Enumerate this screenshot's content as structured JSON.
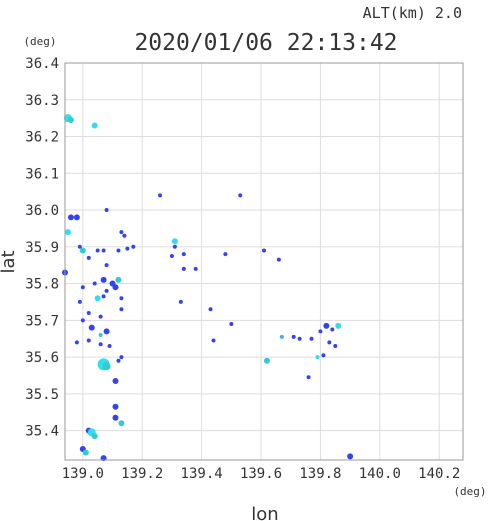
{
  "header": {
    "altitude_label": "ALT(km) 2.0",
    "timestamp": "2020/01/06 22:13:42"
  },
  "colors": {
    "frame": "#999999",
    "grid": "#dddddd",
    "blue": "#3344ee",
    "cyan": "#33ddee",
    "teal": "#33cccc",
    "lightblue": "#44aaff"
  },
  "chart_data": {
    "type": "scatter",
    "title": "2020/01/06 22:13:42",
    "subtitle": "ALT(km) 2.0",
    "xlabel": "lon",
    "ylabel": "lat",
    "x_unit": "(deg)",
    "y_unit": "(deg)",
    "xlim": [
      138.94,
      140.28
    ],
    "ylim": [
      35.32,
      36.4
    ],
    "xticks": [
      139.0,
      139.2,
      139.4,
      139.6,
      139.8,
      140.0,
      140.2
    ],
    "xtick_labels": [
      "139.0",
      "139.2",
      "139.4",
      "139.6",
      "139.8",
      "140.0",
      "140.2"
    ],
    "yticks": [
      35.4,
      35.5,
      35.6,
      35.7,
      35.8,
      35.9,
      36.0,
      36.1,
      36.2,
      36.3,
      36.4
    ],
    "ytick_labels": [
      "35.4",
      "35.5",
      "35.6",
      "35.7",
      "35.8",
      "35.9",
      "36.0",
      "36.1",
      "36.2",
      "36.3",
      "36.4"
    ],
    "grid": true,
    "points": [
      {
        "x": 138.95,
        "y": 36.25,
        "s": 4,
        "c": "cyan"
      },
      {
        "x": 138.96,
        "y": 36.245,
        "s": 3,
        "c": "teal"
      },
      {
        "x": 139.04,
        "y": 36.23,
        "s": 3,
        "c": "cyan"
      },
      {
        "x": 138.96,
        "y": 35.98,
        "s": 3,
        "c": "blue"
      },
      {
        "x": 138.98,
        "y": 35.98,
        "s": 3,
        "c": "blue"
      },
      {
        "x": 139.08,
        "y": 36.0,
        "s": 2,
        "c": "blue"
      },
      {
        "x": 138.95,
        "y": 35.94,
        "s": 3,
        "c": "cyan"
      },
      {
        "x": 139.13,
        "y": 35.94,
        "s": 2,
        "c": "blue"
      },
      {
        "x": 139.14,
        "y": 35.93,
        "s": 2,
        "c": "blue"
      },
      {
        "x": 138.99,
        "y": 35.9,
        "s": 2,
        "c": "blue"
      },
      {
        "x": 139.0,
        "y": 35.89,
        "s": 3,
        "c": "teal"
      },
      {
        "x": 139.05,
        "y": 35.89,
        "s": 2,
        "c": "blue"
      },
      {
        "x": 139.07,
        "y": 35.89,
        "s": 2,
        "c": "blue"
      },
      {
        "x": 139.12,
        "y": 35.89,
        "s": 2,
        "c": "blue"
      },
      {
        "x": 139.15,
        "y": 35.895,
        "s": 2,
        "c": "blue"
      },
      {
        "x": 139.17,
        "y": 35.9,
        "s": 2,
        "c": "blue"
      },
      {
        "x": 139.02,
        "y": 35.87,
        "s": 2,
        "c": "blue"
      },
      {
        "x": 139.08,
        "y": 35.85,
        "s": 2,
        "c": "blue"
      },
      {
        "x": 138.94,
        "y": 35.83,
        "s": 3,
        "c": "blue"
      },
      {
        "x": 139.07,
        "y": 35.81,
        "s": 3,
        "c": "blue"
      },
      {
        "x": 139.1,
        "y": 35.8,
        "s": 3,
        "c": "blue"
      },
      {
        "x": 139.12,
        "y": 35.81,
        "s": 3,
        "c": "teal"
      },
      {
        "x": 139.11,
        "y": 35.79,
        "s": 3,
        "c": "blue"
      },
      {
        "x": 139.08,
        "y": 35.78,
        "s": 2,
        "c": "blue"
      },
      {
        "x": 139.04,
        "y": 35.8,
        "s": 2,
        "c": "blue"
      },
      {
        "x": 139.0,
        "y": 35.79,
        "s": 2,
        "c": "blue"
      },
      {
        "x": 138.99,
        "y": 35.75,
        "s": 2,
        "c": "blue"
      },
      {
        "x": 139.05,
        "y": 35.76,
        "s": 3,
        "c": "cyan"
      },
      {
        "x": 139.07,
        "y": 35.765,
        "s": 2,
        "c": "blue"
      },
      {
        "x": 139.13,
        "y": 35.76,
        "s": 2,
        "c": "blue"
      },
      {
        "x": 139.13,
        "y": 35.73,
        "s": 2,
        "c": "blue"
      },
      {
        "x": 139.02,
        "y": 35.72,
        "s": 2,
        "c": "blue"
      },
      {
        "x": 139.0,
        "y": 35.7,
        "s": 2,
        "c": "blue"
      },
      {
        "x": 139.06,
        "y": 35.71,
        "s": 2,
        "c": "blue"
      },
      {
        "x": 139.03,
        "y": 35.68,
        "s": 3,
        "c": "blue"
      },
      {
        "x": 139.06,
        "y": 35.66,
        "s": 2,
        "c": "teal"
      },
      {
        "x": 139.08,
        "y": 35.67,
        "s": 3,
        "c": "blue"
      },
      {
        "x": 139.02,
        "y": 35.645,
        "s": 2,
        "c": "blue"
      },
      {
        "x": 138.98,
        "y": 35.64,
        "s": 2,
        "c": "blue"
      },
      {
        "x": 139.06,
        "y": 35.635,
        "s": 2,
        "c": "blue"
      },
      {
        "x": 139.09,
        "y": 35.63,
        "s": 2,
        "c": "blue"
      },
      {
        "x": 139.07,
        "y": 35.58,
        "s": 6,
        "c": "cyan"
      },
      {
        "x": 139.08,
        "y": 35.575,
        "s": 4,
        "c": "teal"
      },
      {
        "x": 139.12,
        "y": 35.59,
        "s": 2,
        "c": "blue"
      },
      {
        "x": 139.13,
        "y": 35.6,
        "s": 2,
        "c": "blue"
      },
      {
        "x": 139.11,
        "y": 35.535,
        "s": 3,
        "c": "blue"
      },
      {
        "x": 139.11,
        "y": 35.465,
        "s": 3,
        "c": "blue"
      },
      {
        "x": 139.11,
        "y": 35.435,
        "s": 3,
        "c": "blue"
      },
      {
        "x": 139.13,
        "y": 35.42,
        "s": 3,
        "c": "teal"
      },
      {
        "x": 139.02,
        "y": 35.4,
        "s": 3,
        "c": "blue"
      },
      {
        "x": 139.03,
        "y": 35.395,
        "s": 4,
        "c": "cyan"
      },
      {
        "x": 139.04,
        "y": 35.385,
        "s": 3,
        "c": "teal"
      },
      {
        "x": 139.0,
        "y": 35.35,
        "s": 3,
        "c": "blue"
      },
      {
        "x": 139.01,
        "y": 35.34,
        "s": 3,
        "c": "teal"
      },
      {
        "x": 139.07,
        "y": 35.325,
        "s": 3,
        "c": "blue"
      },
      {
        "x": 139.26,
        "y": 36.04,
        "s": 2,
        "c": "blue"
      },
      {
        "x": 139.53,
        "y": 36.04,
        "s": 2,
        "c": "blue"
      },
      {
        "x": 139.31,
        "y": 35.915,
        "s": 3,
        "c": "cyan"
      },
      {
        "x": 139.31,
        "y": 35.9,
        "s": 2,
        "c": "blue"
      },
      {
        "x": 139.34,
        "y": 35.88,
        "s": 2,
        "c": "blue"
      },
      {
        "x": 139.3,
        "y": 35.875,
        "s": 2,
        "c": "blue"
      },
      {
        "x": 139.48,
        "y": 35.88,
        "s": 2,
        "c": "blue"
      },
      {
        "x": 139.61,
        "y": 35.89,
        "s": 2,
        "c": "blue"
      },
      {
        "x": 139.66,
        "y": 35.865,
        "s": 2,
        "c": "blue"
      },
      {
        "x": 139.34,
        "y": 35.84,
        "s": 2,
        "c": "blue"
      },
      {
        "x": 139.38,
        "y": 35.84,
        "s": 2,
        "c": "blue"
      },
      {
        "x": 139.33,
        "y": 35.75,
        "s": 2,
        "c": "blue"
      },
      {
        "x": 139.43,
        "y": 35.73,
        "s": 2,
        "c": "blue"
      },
      {
        "x": 139.5,
        "y": 35.69,
        "s": 2,
        "c": "blue"
      },
      {
        "x": 139.44,
        "y": 35.645,
        "s": 2,
        "c": "blue"
      },
      {
        "x": 139.62,
        "y": 35.59,
        "s": 3,
        "c": "teal"
      },
      {
        "x": 139.67,
        "y": 35.655,
        "s": 2,
        "c": "lightblue"
      },
      {
        "x": 139.71,
        "y": 35.655,
        "s": 2,
        "c": "blue"
      },
      {
        "x": 139.73,
        "y": 35.65,
        "s": 2,
        "c": "blue"
      },
      {
        "x": 139.77,
        "y": 35.65,
        "s": 2,
        "c": "blue"
      },
      {
        "x": 139.82,
        "y": 35.685,
        "s": 3,
        "c": "blue"
      },
      {
        "x": 139.84,
        "y": 35.675,
        "s": 2,
        "c": "blue"
      },
      {
        "x": 139.86,
        "y": 35.685,
        "s": 3,
        "c": "cyan"
      },
      {
        "x": 139.8,
        "y": 35.67,
        "s": 2,
        "c": "blue"
      },
      {
        "x": 139.83,
        "y": 35.64,
        "s": 2,
        "c": "blue"
      },
      {
        "x": 139.85,
        "y": 35.63,
        "s": 2,
        "c": "blue"
      },
      {
        "x": 139.81,
        "y": 35.605,
        "s": 2,
        "c": "blue"
      },
      {
        "x": 139.79,
        "y": 35.6,
        "s": 2,
        "c": "cyan"
      },
      {
        "x": 139.76,
        "y": 35.545,
        "s": 2,
        "c": "blue"
      },
      {
        "x": 139.9,
        "y": 35.33,
        "s": 3,
        "c": "blue"
      }
    ]
  }
}
